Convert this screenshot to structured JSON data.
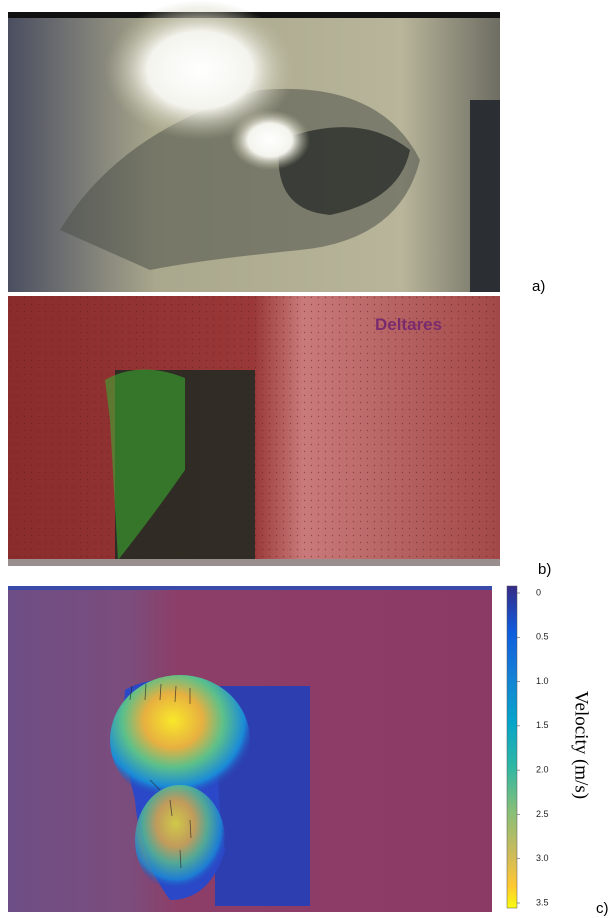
{
  "panels": [
    {
      "label": "a)"
    },
    {
      "label": "b)",
      "watermark": "Deltares"
    },
    {
      "label": "c)",
      "colorbar": {
        "title": "Velocity (m/s)",
        "lim": [
          0,
          3.5
        ],
        "ticks": [
          0,
          0.5,
          {
            "value": 1,
            "label": "1.0"
          },
          1.5,
          {
            "value": 2,
            "label": "2.0"
          },
          2.5,
          {
            "value": 3,
            "label": "3.0"
          },
          3.5
        ]
      }
    }
  ]
}
